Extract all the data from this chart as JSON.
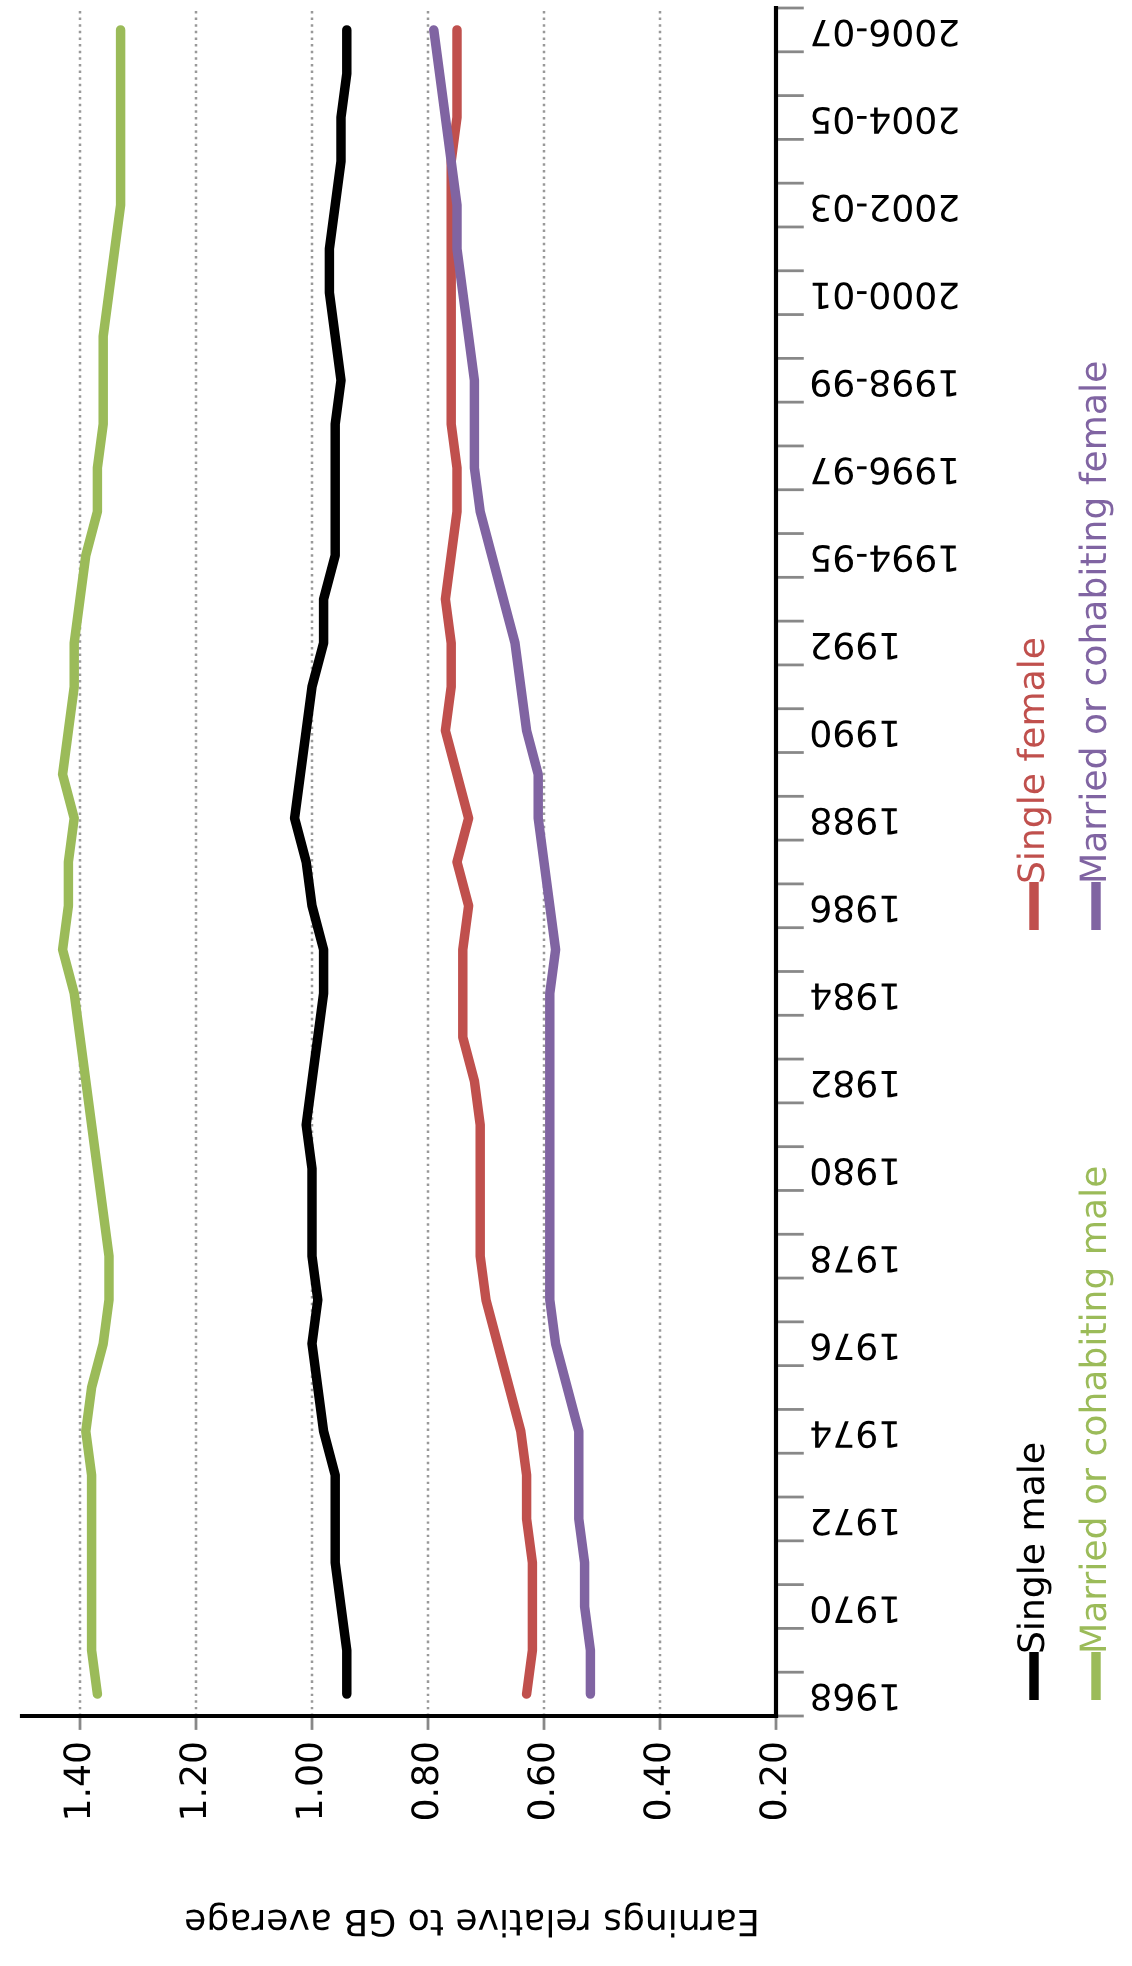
{
  "chart_data": {
    "type": "line",
    "orientation": "horizontal",
    "xlabel": "Earnings relative to GB average",
    "categories": [
      "2006-07",
      null,
      "2004-05",
      null,
      "2002-03",
      null,
      "2000-01",
      null,
      "1998-99",
      null,
      "1996-97",
      null,
      "1994-95",
      null,
      "1992",
      null,
      "1990",
      null,
      "1988",
      null,
      "1986",
      null,
      "1984",
      null,
      "1982",
      null,
      "1980",
      null,
      "1978",
      null,
      "1976",
      null,
      "1974",
      null,
      "1972",
      null,
      "1970",
      null,
      "1968"
    ],
    "series": [
      {
        "name": "Single male",
        "color": "#000000",
        "values": [
          0.94,
          0.94,
          0.95,
          0.95,
          0.96,
          0.97,
          0.97,
          0.96,
          0.95,
          0.96,
          0.96,
          0.96,
          0.96,
          0.98,
          0.98,
          1.0,
          1.01,
          1.02,
          1.03,
          1.01,
          1.0,
          0.98,
          0.98,
          0.99,
          1.0,
          1.01,
          1.0,
          1.0,
          1.0,
          0.99,
          1.0,
          0.99,
          0.98,
          0.96,
          0.96,
          0.96,
          0.95,
          0.94,
          0.94
        ]
      },
      {
        "name": "Married or cohabiting male",
        "color": "#9bbb59",
        "values": [
          1.33,
          1.33,
          1.33,
          1.33,
          1.33,
          1.34,
          1.35,
          1.36,
          1.36,
          1.36,
          1.37,
          1.37,
          1.39,
          1.4,
          1.41,
          1.41,
          1.42,
          1.43,
          1.41,
          1.42,
          1.42,
          1.43,
          1.41,
          1.4,
          1.39,
          1.38,
          1.37,
          1.36,
          1.35,
          1.35,
          1.36,
          1.38,
          1.39,
          1.38,
          1.38,
          1.38,
          1.38,
          1.38,
          1.37
        ]
      },
      {
        "name": "Single female",
        "color": "#c0504d",
        "values": [
          0.75,
          0.75,
          0.75,
          0.76,
          0.76,
          0.76,
          0.76,
          0.76,
          0.76,
          0.76,
          0.75,
          0.75,
          0.76,
          0.77,
          0.76,
          0.76,
          0.77,
          0.75,
          0.73,
          0.75,
          0.73,
          0.74,
          0.74,
          0.74,
          0.72,
          0.71,
          0.71,
          0.71,
          0.71,
          0.7,
          0.68,
          0.66,
          0.64,
          0.63,
          0.63,
          0.62,
          0.62,
          0.62,
          0.63
        ]
      },
      {
        "name": "Married or cohabiting female",
        "color": "#8064a2",
        "values": [
          0.79,
          0.78,
          0.77,
          0.76,
          0.75,
          0.75,
          0.74,
          0.73,
          0.72,
          0.72,
          0.72,
          0.71,
          0.69,
          0.67,
          0.65,
          0.64,
          0.63,
          0.61,
          0.61,
          0.6,
          0.59,
          0.58,
          0.59,
          0.59,
          0.59,
          0.59,
          0.59,
          0.59,
          0.59,
          0.59,
          0.58,
          0.56,
          0.54,
          0.54,
          0.54,
          0.53,
          0.53,
          0.52,
          0.52
        ]
      }
    ],
    "xlim": [
      1.5,
      0.2
    ],
    "xticks": [
      {
        "value": 1.4,
        "label": "1.40"
      },
      {
        "value": 1.2,
        "label": "1.20"
      },
      {
        "value": 1.0,
        "label": "1.00"
      },
      {
        "value": 0.8,
        "label": "0.80"
      },
      {
        "value": 0.6,
        "label": "0.60"
      },
      {
        "value": 0.4,
        "label": "0.40"
      },
      {
        "value": 0.2,
        "label": "0.20"
      }
    ],
    "grid": "x",
    "legend": "right",
    "marker": "none",
    "line_style": "solid"
  }
}
